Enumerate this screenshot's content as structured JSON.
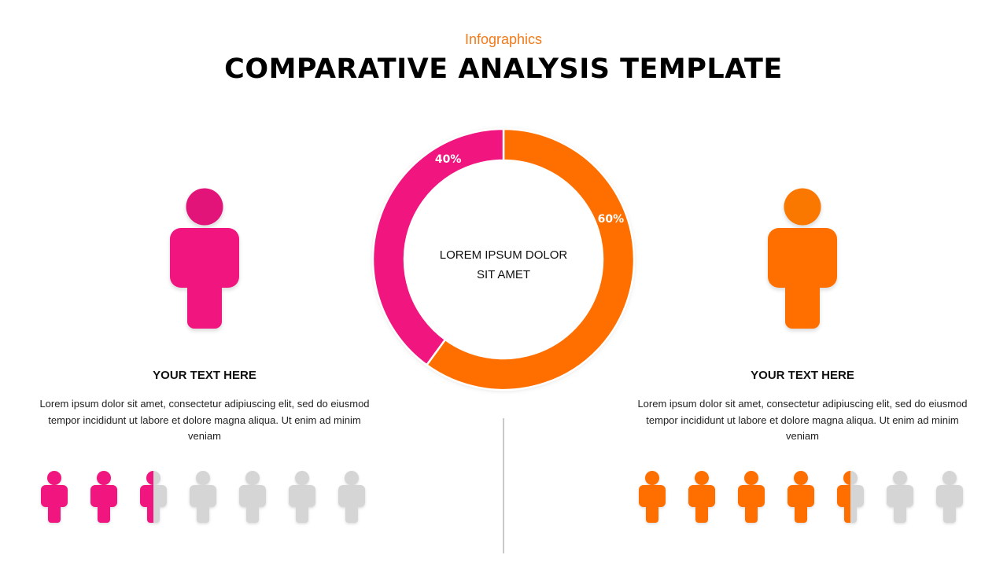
{
  "header": {
    "subtitle": "Infographics",
    "title": "COMPARATIVE ANALYSIS TEMPLATE"
  },
  "colors": {
    "left": "#f0157f",
    "left_dark": "#e2147a",
    "right": "#ff6f00",
    "right_dark": "#fa7800",
    "neutral": "#d5d5d5"
  },
  "chart_data": {
    "type": "pie",
    "donut": true,
    "center_label": [
      "LOREM IPSUM DOLOR",
      "SIT AMET"
    ],
    "slices": [
      {
        "value": 60,
        "label": "60%",
        "color": "#ff6f00"
      },
      {
        "value": 40,
        "label": "40%",
        "color": "#f0157f"
      }
    ]
  },
  "left_panel": {
    "heading": "YOUR TEXT HERE",
    "body": "Lorem ipsum dolor sit amet, consectetur adipiuscing elit, sed do eiusmod tempor incididunt ut labore et dolore magna aliqua. Ut enim ad minim veniam",
    "icon_total": 7,
    "icon_filled": 2.5
  },
  "right_panel": {
    "heading": "YOUR TEXT HERE",
    "body": "Lorem ipsum dolor sit amet, consectetur adipiuscing elit, sed do eiusmod tempor incididunt ut labore et dolore magna aliqua. Ut enim ad minim veniam",
    "icon_total": 7,
    "icon_filled": 4.5
  }
}
